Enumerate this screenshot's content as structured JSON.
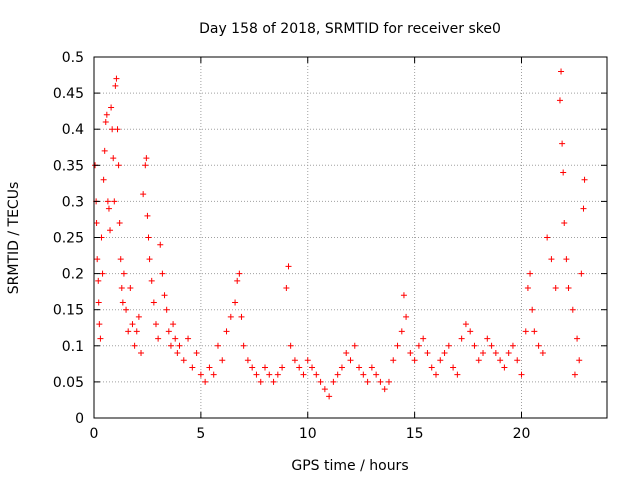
{
  "chart_data": {
    "type": "scatter",
    "title": "Day 158 of 2018, SRMTID for receiver ske0",
    "xlabel": "GPS time / hours",
    "ylabel": "SRMTID / TECUs",
    "xlim": [
      0,
      24
    ],
    "ylim": [
      0,
      0.5
    ],
    "xticks": [
      0,
      5,
      10,
      15,
      20
    ],
    "yticks": [
      0,
      0.05,
      0.1,
      0.15,
      0.2,
      0.25,
      0.3,
      0.35,
      0.4,
      0.45,
      0.5
    ],
    "xtick_labels": [
      "0",
      "5",
      "10",
      "15",
      "20"
    ],
    "ytick_labels": [
      "0",
      "0.05",
      "0.1",
      "0.15",
      "0.2",
      "0.25",
      "0.3",
      "0.35",
      "0.4",
      "0.45",
      "0.5"
    ],
    "grid": true,
    "marker": "+",
    "color": "#ff0000",
    "series": [
      {
        "name": "SRMTID",
        "points": [
          [
            0.05,
            0.35
          ],
          [
            0.1,
            0.3
          ],
          [
            0.12,
            0.27
          ],
          [
            0.15,
            0.22
          ],
          [
            0.2,
            0.19
          ],
          [
            0.22,
            0.16
          ],
          [
            0.25,
            0.13
          ],
          [
            0.3,
            0.11
          ],
          [
            0.35,
            0.25
          ],
          [
            0.4,
            0.2
          ],
          [
            0.45,
            0.33
          ],
          [
            0.5,
            0.37
          ],
          [
            0.55,
            0.41
          ],
          [
            0.6,
            0.42
          ],
          [
            0.65,
            0.3
          ],
          [
            0.7,
            0.29
          ],
          [
            0.75,
            0.26
          ],
          [
            0.8,
            0.43
          ],
          [
            0.85,
            0.4
          ],
          [
            0.9,
            0.36
          ],
          [
            0.95,
            0.3
          ],
          [
            1.0,
            0.46
          ],
          [
            1.05,
            0.47
          ],
          [
            1.1,
            0.4
          ],
          [
            1.15,
            0.35
          ],
          [
            1.2,
            0.27
          ],
          [
            1.25,
            0.22
          ],
          [
            1.3,
            0.18
          ],
          [
            1.35,
            0.16
          ],
          [
            1.4,
            0.2
          ],
          [
            1.5,
            0.15
          ],
          [
            1.6,
            0.12
          ],
          [
            1.7,
            0.18
          ],
          [
            1.8,
            0.13
          ],
          [
            1.9,
            0.1
          ],
          [
            2.0,
            0.12
          ],
          [
            2.1,
            0.14
          ],
          [
            2.2,
            0.09
          ],
          [
            2.3,
            0.31
          ],
          [
            2.4,
            0.35
          ],
          [
            2.45,
            0.36
          ],
          [
            2.5,
            0.28
          ],
          [
            2.55,
            0.25
          ],
          [
            2.6,
            0.22
          ],
          [
            2.7,
            0.19
          ],
          [
            2.8,
            0.16
          ],
          [
            2.9,
            0.13
          ],
          [
            3.0,
            0.11
          ],
          [
            3.1,
            0.24
          ],
          [
            3.2,
            0.2
          ],
          [
            3.3,
            0.17
          ],
          [
            3.4,
            0.15
          ],
          [
            3.5,
            0.12
          ],
          [
            3.6,
            0.1
          ],
          [
            3.7,
            0.13
          ],
          [
            3.8,
            0.11
          ],
          [
            3.9,
            0.09
          ],
          [
            4.0,
            0.1
          ],
          [
            4.2,
            0.08
          ],
          [
            4.4,
            0.11
          ],
          [
            4.6,
            0.07
          ],
          [
            4.8,
            0.09
          ],
          [
            5.0,
            0.06
          ],
          [
            5.2,
            0.05
          ],
          [
            5.4,
            0.07
          ],
          [
            5.6,
            0.06
          ],
          [
            5.8,
            0.1
          ],
          [
            6.0,
            0.08
          ],
          [
            6.2,
            0.12
          ],
          [
            6.4,
            0.14
          ],
          [
            6.6,
            0.16
          ],
          [
            6.7,
            0.19
          ],
          [
            6.8,
            0.2
          ],
          [
            6.9,
            0.14
          ],
          [
            7.0,
            0.1
          ],
          [
            7.2,
            0.08
          ],
          [
            7.4,
            0.07
          ],
          [
            7.6,
            0.06
          ],
          [
            7.8,
            0.05
          ],
          [
            8.0,
            0.07
          ],
          [
            8.2,
            0.06
          ],
          [
            8.4,
            0.05
          ],
          [
            8.6,
            0.06
          ],
          [
            8.8,
            0.07
          ],
          [
            9.0,
            0.18
          ],
          [
            9.1,
            0.21
          ],
          [
            9.2,
            0.1
          ],
          [
            9.4,
            0.08
          ],
          [
            9.6,
            0.07
          ],
          [
            9.8,
            0.06
          ],
          [
            10.0,
            0.08
          ],
          [
            10.2,
            0.07
          ],
          [
            10.4,
            0.06
          ],
          [
            10.6,
            0.05
          ],
          [
            10.8,
            0.04
          ],
          [
            11.0,
            0.03
          ],
          [
            11.2,
            0.05
          ],
          [
            11.4,
            0.06
          ],
          [
            11.6,
            0.07
          ],
          [
            11.8,
            0.09
          ],
          [
            12.0,
            0.08
          ],
          [
            12.2,
            0.1
          ],
          [
            12.4,
            0.07
          ],
          [
            12.6,
            0.06
          ],
          [
            12.8,
            0.05
          ],
          [
            13.0,
            0.07
          ],
          [
            13.2,
            0.06
          ],
          [
            13.4,
            0.05
          ],
          [
            13.6,
            0.04
          ],
          [
            13.8,
            0.05
          ],
          [
            14.0,
            0.08
          ],
          [
            14.2,
            0.1
          ],
          [
            14.4,
            0.12
          ],
          [
            14.5,
            0.17
          ],
          [
            14.6,
            0.14
          ],
          [
            14.8,
            0.09
          ],
          [
            15.0,
            0.08
          ],
          [
            15.2,
            0.1
          ],
          [
            15.4,
            0.11
          ],
          [
            15.6,
            0.09
          ],
          [
            15.8,
            0.07
          ],
          [
            16.0,
            0.06
          ],
          [
            16.2,
            0.08
          ],
          [
            16.4,
            0.09
          ],
          [
            16.6,
            0.1
          ],
          [
            16.8,
            0.07
          ],
          [
            17.0,
            0.06
          ],
          [
            17.2,
            0.11
          ],
          [
            17.4,
            0.13
          ],
          [
            17.6,
            0.12
          ],
          [
            17.8,
            0.1
          ],
          [
            18.0,
            0.08
          ],
          [
            18.2,
            0.09
          ],
          [
            18.4,
            0.11
          ],
          [
            18.6,
            0.1
          ],
          [
            18.8,
            0.09
          ],
          [
            19.0,
            0.08
          ],
          [
            19.2,
            0.07
          ],
          [
            19.4,
            0.09
          ],
          [
            19.6,
            0.1
          ],
          [
            19.8,
            0.08
          ],
          [
            20.0,
            0.06
          ],
          [
            20.2,
            0.12
          ],
          [
            20.3,
            0.18
          ],
          [
            20.4,
            0.2
          ],
          [
            20.5,
            0.15
          ],
          [
            20.6,
            0.12
          ],
          [
            20.8,
            0.1
          ],
          [
            21.0,
            0.09
          ],
          [
            21.2,
            0.25
          ],
          [
            21.4,
            0.22
          ],
          [
            21.6,
            0.18
          ],
          [
            21.8,
            0.44
          ],
          [
            21.85,
            0.48
          ],
          [
            21.9,
            0.38
          ],
          [
            21.95,
            0.34
          ],
          [
            22.0,
            0.27
          ],
          [
            22.1,
            0.22
          ],
          [
            22.2,
            0.18
          ],
          [
            22.4,
            0.15
          ],
          [
            22.6,
            0.11
          ],
          [
            22.8,
            0.2
          ],
          [
            22.9,
            0.29
          ],
          [
            22.95,
            0.33
          ],
          [
            22.7,
            0.08
          ],
          [
            22.5,
            0.06
          ]
        ]
      }
    ]
  }
}
